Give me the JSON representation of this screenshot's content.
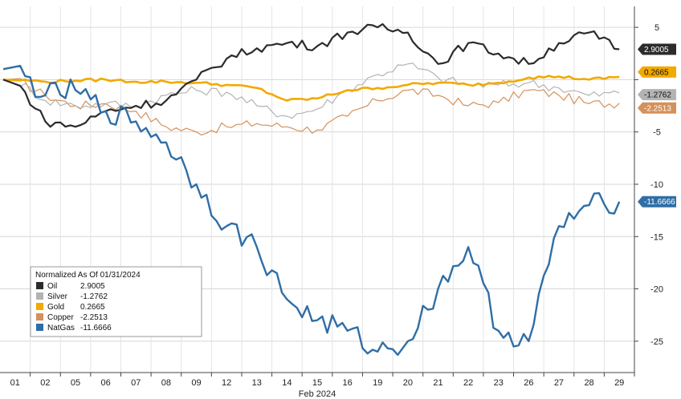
{
  "chart_data": {
    "type": "line",
    "xlabel": "Feb 2024",
    "x": [
      "01",
      "02",
      "05",
      "06",
      "07",
      "08",
      "09",
      "12",
      "13",
      "14",
      "15",
      "16",
      "19",
      "20",
      "21",
      "22",
      "23",
      "26",
      "27",
      "28",
      "29"
    ],
    "y_ticks": [
      "5",
      "",
      "-5",
      "-10",
      "-15",
      "-20",
      "-25"
    ],
    "ylim": [
      -28,
      7
    ],
    "grid": true,
    "legend_title": "Normalized As Of 01/31/2024",
    "legend_position": "bottom-left",
    "series": [
      {
        "name": "Oil",
        "value_label": "2.9005",
        "tag": "2.9005",
        "color": "#2b2b2b",
        "tag_text_color": "#ffffff",
        "values": [
          0,
          -4,
          -4.5,
          -3,
          -2.5,
          -2,
          0,
          2,
          3,
          3.5,
          3.2,
          4.5,
          5,
          4.5,
          1.5,
          3.5,
          2.5,
          1.5,
          3.5,
          4.5,
          2.9005
        ]
      },
      {
        "name": "Silver",
        "value_label": "-1.2762",
        "tag": "-1.2762",
        "color": "#b3b3b3",
        "tag_text_color": "#111111",
        "values": [
          0,
          -2,
          -2.5,
          -2.3,
          -2.5,
          -1.5,
          -1,
          -1.2,
          -2.5,
          -3.5,
          -2.8,
          -1,
          0.5,
          1.5,
          0.2,
          -0.5,
          -0.5,
          -0.3,
          -0.8,
          -1.5,
          -1.2762
        ]
      },
      {
        "name": "Gold",
        "value_label": "0.2665",
        "tag": "0.2665",
        "color": "#f2a900",
        "tag_text_color": "#111111",
        "values": [
          0,
          -0.2,
          -0.1,
          0,
          -0.2,
          -0.2,
          -0.3,
          -0.5,
          -0.8,
          -2,
          -1.8,
          -1,
          -0.8,
          -0.5,
          -0.3,
          -0.5,
          -0.3,
          0.2,
          0.3,
          0,
          0.2665
        ]
      },
      {
        "name": "Copper",
        "value_label": "-2.2513",
        "tag": "-2.2513",
        "color": "#d4915b",
        "tag_text_color": "#ffffff",
        "values": [
          0,
          -1.5,
          -2.5,
          -2.3,
          -3,
          -4.5,
          -5,
          -4.5,
          -4.2,
          -4.5,
          -4.8,
          -3.5,
          -2,
          -1,
          -1.5,
          -2.5,
          -2.2,
          -1,
          -1.5,
          -2.3,
          -2.2513
        ]
      },
      {
        "name": "NatGas",
        "value_label": "-11.6666",
        "tag": "-11.6666",
        "color": "#2f6ea6",
        "tag_text_color": "#ffffff",
        "values": [
          1,
          -1.5,
          -1,
          -3,
          -4,
          -6,
          -10,
          -14,
          -16,
          -21,
          -23,
          -24,
          -26,
          -25,
          -20,
          -16,
          -24,
          -25,
          -14,
          -12,
          -11.6666
        ]
      }
    ]
  }
}
